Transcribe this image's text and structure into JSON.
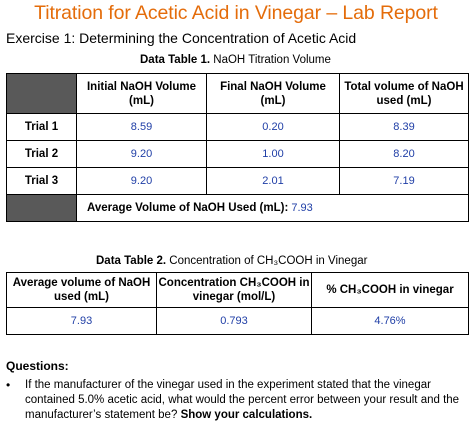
{
  "title": "Titration for Acetic Acid in Vinegar – Lab Report",
  "exercise": "Exercise 1: Determining the Concentration of Acetic Acid",
  "table1": {
    "caption_bold": "Data Table 1.",
    "caption_rest": " NaOH Titration Volume",
    "headers": [
      "Initial NaOH Volume (mL)",
      "Final NaOH Volume (mL)",
      "Total volume of NaOH used (mL)"
    ],
    "rows": [
      {
        "label": "Trial 1",
        "initial": "8.59",
        "final": "0.20",
        "total": "8.39"
      },
      {
        "label": "Trial 2",
        "initial": "9.20",
        "final": "1.00",
        "total": "8.20"
      },
      {
        "label": "Trial 3",
        "initial": "9.20",
        "final": "2.01",
        "total": "7.19"
      }
    ],
    "average_label": "Average Volume of NaOH Used (mL):",
    "average_value": " 7.93"
  },
  "table2": {
    "caption_bold": "Data Table 2.",
    "caption_rest": " Concentration of CH₃COOH in Vinegar",
    "headers": [
      "Average volume of NaOH used (mL)",
      "Concentration CH₃COOH in vinegar (mol/L)",
      "% CH₃COOH in vinegar"
    ],
    "values": [
      "7.93",
      "0.793",
      "4.76%"
    ]
  },
  "questions": {
    "heading": "Questions:",
    "bullet": "•",
    "q1_text": "If the manufacturer of the vinegar used in the experiment stated that the vinegar contained 5.0% acetic acid, what would the percent error between your result and the manufacturer’s statement be? ",
    "q1_bold": "Show your calculations."
  }
}
